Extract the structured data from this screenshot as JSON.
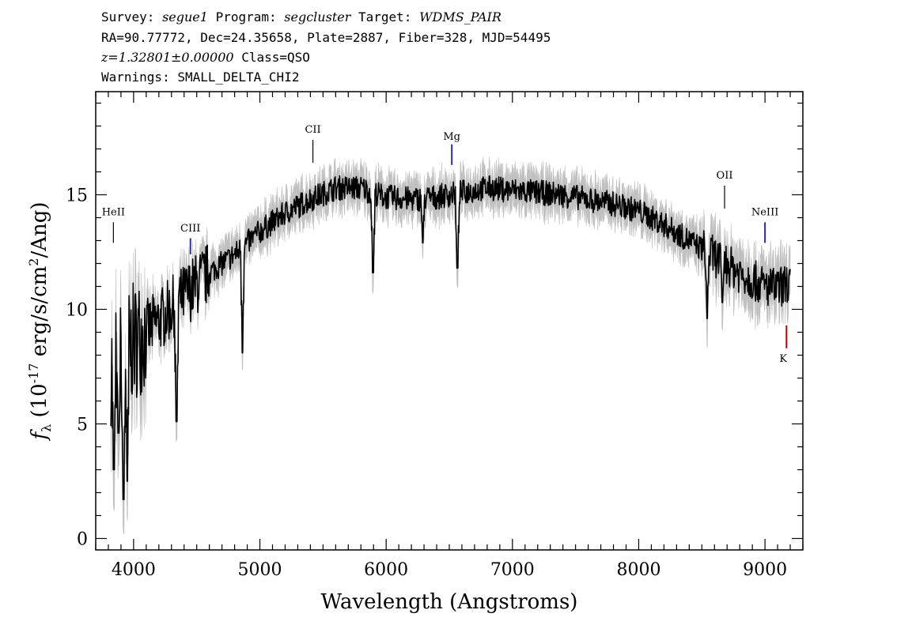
{
  "header": {
    "survey_label": "Survey:",
    "survey": "segue1",
    "program_label": "Program:",
    "program": "segcluster",
    "target_label": "Target:",
    "target": "WDMS_PAIR",
    "line2": "RA=90.77772, Dec=24.35658, Plate=2887, Fiber=328, MJD=54495",
    "redshift": "z=1.32801±0.00000",
    "class_text": "Class=QSO",
    "warnings": "Warnings: SMALL_DELTA_CHI2"
  },
  "chart_data": {
    "type": "line",
    "xlabel": "Wavelength (Angstroms)",
    "ylabel_prefix": "(10",
    "ylabel_exp": "-17",
    "ylabel_mid": " erg/s/cm",
    "ylabel_exp2": "2",
    "ylabel_suffix": "/Ang)",
    "ylabel_symbol": "f",
    "ylabel_sub": "λ",
    "xlim": [
      3700,
      9300
    ],
    "ylim": [
      -0.5,
      19.5
    ],
    "xticks": [
      4000,
      5000,
      6000,
      7000,
      8000,
      9000
    ],
    "xtick_labels": [
      "4000",
      "5000",
      "6000",
      "7000",
      "8000",
      "9000"
    ],
    "yticks": [
      0,
      5,
      10,
      15
    ],
    "ytick_labels": [
      "0",
      "5",
      "10",
      "15"
    ],
    "colors": {
      "flux": "#000000",
      "error_band": "#c0c0c0",
      "emission": "#2b2bb0",
      "absorption": "#cc0000",
      "label_tick": "#000000"
    },
    "continuum": [
      [
        3820,
        7.5
      ],
      [
        3900,
        7.8
      ],
      [
        4000,
        8.6
      ],
      [
        4200,
        9.5
      ],
      [
        4400,
        10.6
      ],
      [
        4600,
        11.6
      ],
      [
        4800,
        12.4
      ],
      [
        5000,
        13.4
      ],
      [
        5200,
        14.2
      ],
      [
        5400,
        14.8
      ],
      [
        5600,
        15.3
      ],
      [
        5800,
        15.3
      ],
      [
        6000,
        14.9
      ],
      [
        6200,
        14.8
      ],
      [
        6400,
        14.9
      ],
      [
        6600,
        15.1
      ],
      [
        6800,
        15.3
      ],
      [
        7000,
        15.2
      ],
      [
        7200,
        15.1
      ],
      [
        7400,
        15.0
      ],
      [
        7600,
        14.8
      ],
      [
        7800,
        14.6
      ],
      [
        8000,
        14.3
      ],
      [
        8200,
        13.7
      ],
      [
        8400,
        13.0
      ],
      [
        8600,
        12.3
      ],
      [
        8800,
        11.6
      ],
      [
        9000,
        11.0
      ],
      [
        9100,
        10.9
      ],
      [
        9200,
        11.2
      ]
    ],
    "absorption_dips": [
      [
        3845,
        3.0
      ],
      [
        3880,
        4.6
      ],
      [
        3920,
        1.7
      ],
      [
        3950,
        2.5
      ],
      [
        4340,
        5.1
      ],
      [
        4862,
        8.1
      ],
      [
        5895,
        11.6
      ],
      [
        6290,
        12.9
      ],
      [
        6563,
        11.8
      ],
      [
        8542,
        9.6
      ],
      [
        8662,
        10.3
      ]
    ],
    "emission_lines": [
      {
        "name": "HeII",
        "wavelength": 3840,
        "marker": "label",
        "label_y": 14.1,
        "tick_top": 13.8,
        "tick_bottom": 12.9
      },
      {
        "name": "CIII",
        "wavelength": 4450,
        "marker": "blue",
        "label_y": 13.4,
        "tick_top": 13.1,
        "tick_bottom": 12.4
      },
      {
        "name": "CII",
        "wavelength": 5420,
        "marker": "label",
        "label_y": 17.7,
        "tick_top": 17.4,
        "tick_bottom": 16.4
      },
      {
        "name": "Mg",
        "wavelength": 6520,
        "marker": "blue",
        "label_y": 17.4,
        "tick_top": 17.2,
        "tick_bottom": 16.3
      },
      {
        "name": "OII",
        "wavelength": 8680,
        "marker": "label",
        "label_y": 15.7,
        "tick_top": 15.4,
        "tick_bottom": 14.4
      },
      {
        "name": "NeIII",
        "wavelength": 9000,
        "marker": "blue",
        "label_y": 14.1,
        "tick_top": 13.8,
        "tick_bottom": 12.9
      }
    ],
    "absorption_lines": [
      {
        "name": "K",
        "wavelength": 9170,
        "label_y": 7.7,
        "tick_top": 9.3,
        "tick_bottom": 8.3
      }
    ]
  }
}
